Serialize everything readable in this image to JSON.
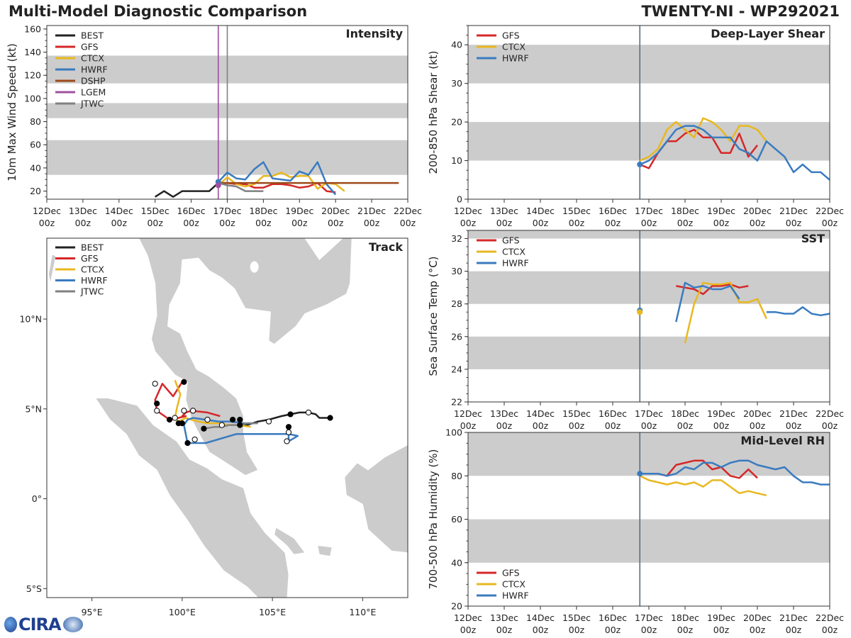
{
  "header": {
    "title_left": "Multi-Model Diagnostic Comparison",
    "title_right": "TWENTY-NI - WP292021"
  },
  "logo": {
    "text": "CIRA",
    "icon": "cira-logo"
  },
  "colors": {
    "BEST": "#222222",
    "GFS": "#d62728",
    "CTCX": "#e8b820",
    "HWRF": "#3a7bbf",
    "DSHP": "#9c4a1a",
    "LGEM": "#a050a0",
    "JTWC": "#808080",
    "band": "#cccccc",
    "land": "#cccccc",
    "now_line": "#5a6e82"
  },
  "chart_data": [
    {
      "id": "intensity",
      "type": "line",
      "title": "Intensity",
      "ylabel": "10m Max Wind Speed (kt)",
      "xlim": [
        0,
        10
      ],
      "ylim": [
        13,
        163
      ],
      "yticks": [
        20,
        40,
        60,
        80,
        100,
        120,
        140,
        160
      ],
      "xticks": [
        "12Dec\n00z",
        "13Dec\n00z",
        "14Dec\n00z",
        "15Dec\n00z",
        "16Dec\n00z",
        "17Dec\n00z",
        "18Dec\n00z",
        "19Dec\n00z",
        "20Dec\n00z",
        "21Dec\n00z",
        "22Dec\n00z"
      ],
      "bands": [
        [
          34,
          64
        ],
        [
          83,
          96
        ],
        [
          113,
          137
        ]
      ],
      "vlines": [
        {
          "x": 4.75,
          "color": "#a050a0"
        },
        {
          "x": 5.0,
          "color": "#808080"
        }
      ],
      "legend": [
        "BEST",
        "GFS",
        "CTCX",
        "HWRF",
        "DSHP",
        "LGEM",
        "JTWC"
      ],
      "series": [
        {
          "name": "BEST",
          "x": [
            3.0,
            3.25,
            3.5,
            3.75,
            4.0,
            4.25,
            4.5,
            4.75
          ],
          "y": [
            15,
            20,
            15,
            20,
            20,
            20,
            20,
            27
          ]
        },
        {
          "name": "GFS",
          "x": [
            4.75,
            5.0,
            5.25,
            5.5,
            5.75,
            6.0,
            6.25,
            6.5,
            6.75,
            7.0,
            7.25,
            7.5,
            7.75,
            8.0
          ],
          "y": [
            27,
            27,
            26,
            26,
            23,
            23,
            26,
            26,
            25,
            23,
            24,
            27,
            20,
            19
          ]
        },
        {
          "name": "CTCX",
          "x": [
            4.75,
            5.0,
            5.25,
            5.5,
            5.75,
            6.0,
            6.25,
            6.5,
            6.75,
            7.0,
            7.25,
            7.5,
            7.75,
            8.0,
            8.25
          ],
          "y": [
            25,
            32,
            26,
            24,
            26,
            33,
            33,
            36,
            32,
            33,
            33,
            22,
            27,
            26,
            20
          ]
        },
        {
          "name": "HWRF",
          "x": [
            4.75,
            5.0,
            5.25,
            5.5,
            5.75,
            6.0,
            6.25,
            6.5,
            6.75,
            7.0,
            7.25,
            7.5,
            7.75,
            8.0
          ],
          "y": [
            28,
            36,
            31,
            30,
            39,
            45,
            31,
            30,
            29,
            37,
            34,
            45,
            26,
            17
          ]
        },
        {
          "name": "DSHP",
          "x": [
            4.75,
            9.75
          ],
          "y": [
            27,
            27
          ]
        },
        {
          "name": "JTWC",
          "x": [
            4.75,
            5.0,
            5.25,
            5.5,
            5.75,
            6.0
          ],
          "y": [
            27,
            25,
            24,
            20,
            20,
            20
          ]
        }
      ],
      "markers": [
        {
          "series": "HWRF",
          "x": 4.75,
          "y": 28
        },
        {
          "series": "LGEM",
          "x": 4.75,
          "y": 25
        }
      ]
    },
    {
      "id": "shear",
      "type": "line",
      "title": "Deep-Layer Shear",
      "ylabel": "200-850 hPa Shear (kt)",
      "xlim": [
        0,
        10
      ],
      "ylim": [
        0,
        45
      ],
      "yticks": [
        0,
        10,
        20,
        30,
        40
      ],
      "xticks": [
        "12Dec\n00z",
        "13Dec\n00z",
        "14Dec\n00z",
        "15Dec\n00z",
        "16Dec\n00z",
        "17Dec\n00z",
        "18Dec\n00z",
        "19Dec\n00z",
        "20Dec\n00z",
        "21Dec\n00z",
        "22Dec\n00z"
      ],
      "bands": [
        [
          10,
          20
        ],
        [
          30,
          40
        ]
      ],
      "vlines": [
        {
          "x": 4.75,
          "color": "#5a6e82"
        }
      ],
      "legend": [
        "GFS",
        "CTCX",
        "HWRF"
      ],
      "series": [
        {
          "name": "GFS",
          "x": [
            4.75,
            5.0,
            5.25,
            5.5,
            5.75,
            6.0,
            6.25,
            6.5,
            6.75,
            7.0,
            7.25,
            7.5,
            7.75,
            8.0
          ],
          "y": [
            9,
            8,
            12,
            15,
            15,
            17,
            18,
            16,
            16,
            12,
            12,
            17,
            11,
            14
          ]
        },
        {
          "name": "CTCX",
          "x": [
            4.75,
            5.0,
            5.25,
            5.5,
            5.75,
            6.0,
            6.25,
            6.5,
            6.75,
            7.0,
            7.25,
            7.5,
            7.75,
            8.0,
            8.25
          ],
          "y": [
            10,
            11,
            13,
            18,
            20,
            18,
            16,
            21,
            20,
            18,
            15,
            19,
            19,
            18,
            15
          ]
        },
        {
          "name": "HWRF",
          "x": [
            4.75,
            5.0,
            5.25,
            5.5,
            5.75,
            6.0,
            6.25,
            6.5,
            6.75,
            7.0,
            7.25,
            7.5,
            7.75,
            8.0,
            8.25,
            8.5,
            8.75,
            9.0,
            9.25,
            9.5,
            9.75,
            10.0
          ],
          "y": [
            9,
            10,
            12,
            15,
            18,
            19,
            19,
            18,
            16,
            16,
            16,
            13,
            12,
            10,
            15,
            13,
            11,
            7,
            9,
            7,
            7,
            5
          ]
        }
      ],
      "markers": [
        {
          "series": "HWRF",
          "x": 4.75,
          "y": 9
        }
      ]
    },
    {
      "id": "sst",
      "type": "line",
      "title": "SST",
      "ylabel": "Sea Surface Temp (°C)",
      "xlim": [
        0,
        10
      ],
      "ylim": [
        22,
        32.5
      ],
      "yticks": [
        22,
        24,
        26,
        28,
        30,
        32
      ],
      "xticks": [
        "12Dec\n00z",
        "13Dec\n00z",
        "14Dec\n00z",
        "15Dec\n00z",
        "16Dec\n00z",
        "17Dec\n00z",
        "18Dec\n00z",
        "19Dec\n00z",
        "20Dec\n00z",
        "21Dec\n00z",
        "22Dec\n00z"
      ],
      "bands": [
        [
          24,
          26
        ],
        [
          28,
          30
        ],
        [
          32,
          32.5
        ]
      ],
      "vlines": [
        {
          "x": 4.75,
          "color": "#5a6e82"
        }
      ],
      "legend": [
        "GFS",
        "CTCX",
        "HWRF"
      ],
      "series": [
        {
          "name": "GFS",
          "x": [
            5.75,
            6.0,
            6.25,
            6.5,
            6.75,
            7.0,
            7.25,
            7.5,
            7.75
          ],
          "y": [
            29.1,
            29.0,
            28.9,
            28.6,
            29.1,
            29.1,
            29.2,
            29.0,
            29.1
          ]
        },
        {
          "name": "CTCX",
          "x": [
            6.0,
            6.25,
            6.5,
            6.75,
            7.0,
            7.25,
            7.5,
            7.75,
            8.0,
            8.25
          ],
          "y": [
            25.6,
            28.0,
            29.3,
            29.2,
            29.2,
            29.3,
            28.1,
            28.1,
            28.3,
            27.1
          ]
        },
        {
          "name": "HWRF",
          "x": [
            5.75,
            6.0,
            6.25,
            6.5,
            6.75,
            7.0,
            7.25,
            7.5
          ],
          "y": [
            26.9,
            29.3,
            29.0,
            29.1,
            28.9,
            28.9,
            29.1,
            28.3
          ]
        },
        {
          "name": "HWRF-b",
          "x": [
            8.25,
            8.5,
            8.75,
            9.0,
            9.25,
            9.5,
            9.75,
            10.0
          ],
          "y": [
            27.5,
            27.5,
            27.4,
            27.4,
            27.8,
            27.4,
            27.3,
            27.4
          ]
        }
      ],
      "markers": [
        {
          "series": "HWRF",
          "x": 4.75,
          "y": 27.6
        },
        {
          "series": "CTCX",
          "x": 4.75,
          "y": 27.5
        }
      ]
    },
    {
      "id": "rh",
      "type": "line",
      "title": "Mid-Level RH",
      "ylabel": "700-500 hPa Humidity (%)",
      "xlim": [
        0,
        10
      ],
      "ylim": [
        20,
        100
      ],
      "yticks": [
        20,
        40,
        60,
        80,
        100
      ],
      "xticks": [
        "12Dec\n00z",
        "13Dec\n00z",
        "14Dec\n00z",
        "15Dec\n00z",
        "16Dec\n00z",
        "17Dec\n00z",
        "18Dec\n00z",
        "19Dec\n00z",
        "20Dec\n00z",
        "21Dec\n00z",
        "22Dec\n00z"
      ],
      "bands": [
        [
          40,
          60
        ],
        [
          80,
          100
        ]
      ],
      "vlines": [
        {
          "x": 4.75,
          "color": "#5a6e82"
        }
      ],
      "legend": [
        "GFS",
        "CTCX",
        "HWRF"
      ],
      "series": [
        {
          "name": "GFS",
          "x": [
            4.75,
            5.0,
            5.25,
            5.5,
            5.75,
            6.0,
            6.25,
            6.5,
            6.75,
            7.0,
            7.25,
            7.5,
            7.75,
            8.0
          ],
          "y": [
            81,
            81,
            81,
            80,
            85,
            86,
            87,
            87,
            83,
            84,
            80,
            79,
            83,
            79
          ]
        },
        {
          "name": "CTCX",
          "x": [
            4.75,
            5.0,
            5.25,
            5.5,
            5.75,
            6.0,
            6.25,
            6.5,
            6.75,
            7.0,
            7.25,
            7.5,
            7.75,
            8.0,
            8.25
          ],
          "y": [
            80,
            78,
            77,
            76,
            77,
            76,
            77,
            75,
            78,
            78,
            75,
            72,
            73,
            72,
            71
          ]
        },
        {
          "name": "HWRF",
          "x": [
            4.75,
            5.0,
            5.25,
            5.5,
            5.75,
            6.0,
            6.25,
            6.5,
            6.75,
            7.0,
            7.25,
            7.5,
            7.75,
            8.0,
            8.25,
            8.5,
            8.75,
            9.0,
            9.25,
            9.5,
            9.75,
            10.0
          ],
          "y": [
            81,
            81,
            81,
            80,
            81,
            84,
            83,
            86,
            86,
            84,
            86,
            87,
            87,
            85,
            84,
            83,
            84,
            80,
            77,
            77,
            76,
            76
          ]
        }
      ],
      "markers": [
        {
          "series": "HWRF",
          "x": 4.75,
          "y": 81
        }
      ]
    },
    {
      "id": "track",
      "type": "scatter",
      "title": "Track",
      "xlim": [
        92.5,
        112.5
      ],
      "ylim": [
        -5.5,
        14.5
      ],
      "xticks": [
        95,
        100,
        105,
        110
      ],
      "xtick_labels": [
        "95°E",
        "100°E",
        "105°E",
        "110°E"
      ],
      "yticks": [
        -5,
        0,
        5,
        10
      ],
      "ytick_labels": [
        "5°S",
        "0°",
        "5°N",
        "10°N"
      ],
      "legend": [
        "BEST",
        "GFS",
        "CTCX",
        "HWRF",
        "JTWC"
      ],
      "series": [
        {
          "name": "BEST",
          "lon": [
            108.2,
            107.6,
            107.4,
            107.0,
            106.5,
            106.0,
            105.5,
            104.8,
            104.2,
            103.6,
            103.2
          ],
          "lat": [
            4.5,
            4.5,
            4.7,
            4.8,
            4.8,
            4.7,
            4.6,
            4.4,
            4.3,
            4.1,
            4.1
          ]
        },
        {
          "name": "GFS",
          "lon": [
            102.1,
            101.4,
            100.5,
            100.2,
            100.0,
            100.2,
            99.8,
            99.3,
            98.6,
            98.5,
            98.9,
            99.5,
            100.0
          ],
          "lat": [
            4.6,
            4.8,
            4.9,
            4.8,
            4.6,
            4.6,
            4.5,
            4.4,
            4.9,
            5.5,
            6.4,
            5.7,
            6.5
          ]
        },
        {
          "name": "CTCX",
          "lon": [
            103.8,
            103.1,
            102.6,
            102.0,
            101.4,
            100.9,
            100.5,
            100.2,
            99.8,
            99.6,
            99.7,
            99.9,
            99.6
          ],
          "lat": [
            4.0,
            4.1,
            4.1,
            4.2,
            4.2,
            4.3,
            4.4,
            4.5,
            4.3,
            4.5,
            5.0,
            5.8,
            6.6
          ]
        },
        {
          "name": "HWRF",
          "lon": [
            104.0,
            103.4,
            102.7,
            102.0,
            101.3,
            100.6,
            100.3,
            100.1,
            100.3,
            101.3,
            103.0,
            105.0,
            105.9,
            106.4,
            105.9,
            105.9
          ],
          "lat": [
            4.2,
            4.2,
            4.3,
            4.3,
            4.4,
            4.5,
            4.4,
            4.1,
            3.1,
            3.1,
            3.6,
            3.6,
            3.6,
            3.5,
            3.2,
            3.7
          ]
        },
        {
          "name": "JTWC",
          "lon": [
            104.2,
            103.6,
            103.1,
            102.6,
            102.2,
            101.8,
            101.2
          ],
          "lat": [
            4.2,
            4.2,
            4.1,
            4.1,
            4.0,
            4.0,
            3.9
          ]
        }
      ],
      "points": [
        {
          "lon": 108.2,
          "lat": 4.5,
          "fill": "black"
        },
        {
          "lon": 106.0,
          "lat": 4.7,
          "fill": "black"
        },
        {
          "lon": 107.0,
          "lat": 4.8,
          "fill": "white"
        },
        {
          "lon": 104.8,
          "lat": 4.3,
          "fill": "white"
        },
        {
          "lon": 103.2,
          "lat": 4.1,
          "fill": "black"
        },
        {
          "lon": 103.2,
          "lat": 4.4,
          "fill": "black"
        },
        {
          "lon": 102.8,
          "lat": 4.4,
          "fill": "black"
        },
        {
          "lon": 102.2,
          "lat": 4.1,
          "fill": "white"
        },
        {
          "lon": 101.4,
          "lat": 4.4,
          "fill": "white"
        },
        {
          "lon": 101.2,
          "lat": 3.9,
          "fill": "black"
        },
        {
          "lon": 100.6,
          "lat": 4.9,
          "fill": "white"
        },
        {
          "lon": 100.1,
          "lat": 4.9,
          "fill": "white"
        },
        {
          "lon": 100.0,
          "lat": 4.2,
          "fill": "black"
        },
        {
          "lon": 99.8,
          "lat": 4.2,
          "fill": "black"
        },
        {
          "lon": 99.3,
          "lat": 4.4,
          "fill": "black"
        },
        {
          "lon": 99.6,
          "lat": 4.5,
          "fill": "white"
        },
        {
          "lon": 98.6,
          "lat": 4.9,
          "fill": "white"
        },
        {
          "lon": 98.6,
          "lat": 5.3,
          "fill": "black"
        },
        {
          "lon": 98.5,
          "lat": 6.4,
          "fill": "white"
        },
        {
          "lon": 100.1,
          "lat": 6.5,
          "fill": "black"
        },
        {
          "lon": 100.3,
          "lat": 3.1,
          "fill": "black"
        },
        {
          "lon": 100.7,
          "lat": 3.3,
          "fill": "white"
        },
        {
          "lon": 105.9,
          "lat": 4.0,
          "fill": "black"
        },
        {
          "lon": 105.9,
          "lat": 3.7,
          "fill": "white"
        },
        {
          "lon": 105.8,
          "lat": 3.2,
          "fill": "white"
        }
      ]
    }
  ]
}
